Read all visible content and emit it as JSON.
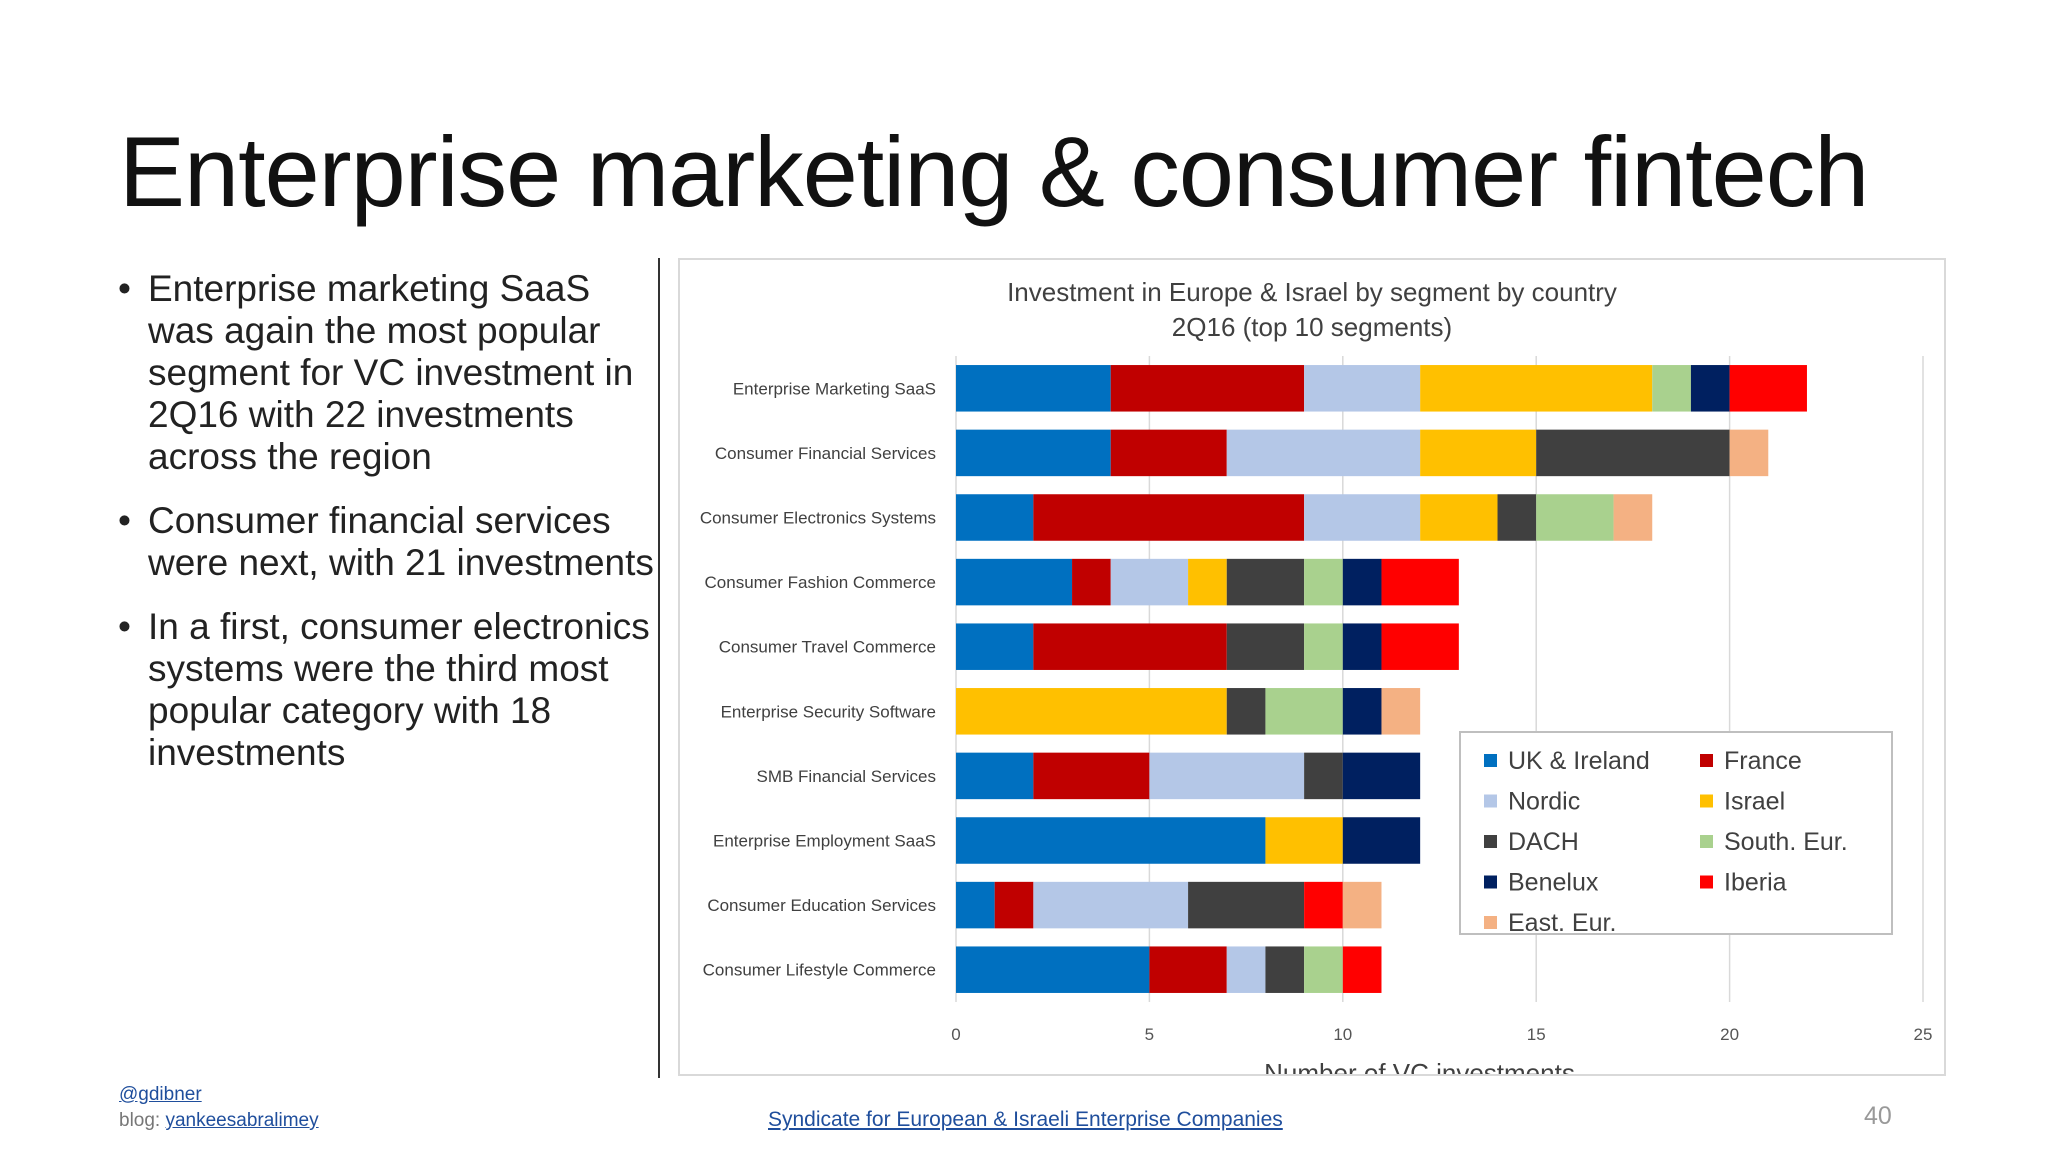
{
  "slide": {
    "title": "Enterprise marketing & consumer fintech",
    "bullets": [
      "Enterprise marketing SaaS was again the most popular segment for VC investment in 2Q16 with 22 investments across the region",
      "Consumer financial services were next, with 21 investments",
      "In a first, consumer electronics systems were the third most popular category with 18 investments"
    ],
    "page_number": "40"
  },
  "footer": {
    "handle": "@gdibner",
    "blog_label": "blog:",
    "blog_link": "yankeesabralimey",
    "center_link": "Syndicate for European & Israeli Enterprise Companies"
  },
  "chart_data": {
    "type": "bar",
    "orientation": "horizontal",
    "stacked": true,
    "title": "Investment in Europe & Israel by segment by country",
    "subtitle": "2Q16 (top 10 segments)",
    "xlabel": "Number of VC investments",
    "ylabel": "",
    "xlim": [
      0,
      25
    ],
    "xticks": [
      0,
      5,
      10,
      15,
      20,
      25
    ],
    "grid": true,
    "legend_position": "bottom-right",
    "categories": [
      "Enterprise Marketing SaaS",
      "Consumer Financial Services",
      "Consumer Electronics Systems",
      "Consumer Fashion Commerce",
      "Consumer Travel Commerce",
      "Enterprise Security Software",
      "SMB Financial Services",
      "Enterprise Employment SaaS",
      "Consumer Education Services",
      "Consumer Lifestyle Commerce"
    ],
    "series": [
      {
        "name": "UK & Ireland",
        "color": "#0070C0",
        "values": [
          4,
          4,
          2,
          3,
          2,
          0,
          2,
          8,
          1,
          5
        ]
      },
      {
        "name": "France",
        "color": "#C00000",
        "values": [
          5,
          3,
          7,
          1,
          5,
          0,
          3,
          0,
          1,
          2
        ]
      },
      {
        "name": "Nordic",
        "color": "#B4C7E7",
        "values": [
          3,
          5,
          3,
          2,
          0,
          0,
          4,
          0,
          4,
          1
        ]
      },
      {
        "name": "Israel",
        "color": "#FFC000",
        "values": [
          6,
          3,
          2,
          1,
          0,
          7,
          0,
          2,
          0,
          0
        ]
      },
      {
        "name": "DACH",
        "color": "#404040",
        "values": [
          0,
          5,
          1,
          2,
          2,
          1,
          1,
          0,
          3,
          1
        ]
      },
      {
        "name": "South. Eur.",
        "color": "#A9D18E",
        "values": [
          1,
          0,
          2,
          1,
          1,
          2,
          0,
          0,
          0,
          1
        ]
      },
      {
        "name": "Benelux",
        "color": "#002060",
        "values": [
          1,
          0,
          0,
          1,
          1,
          1,
          2,
          2,
          0,
          0
        ]
      },
      {
        "name": "Iberia",
        "color": "#FF0000",
        "values": [
          2,
          0,
          0,
          2,
          2,
          0,
          0,
          0,
          1,
          1
        ]
      },
      {
        "name": "East. Eur.",
        "color": "#F4B183",
        "values": [
          0,
          1,
          1,
          0,
          0,
          1,
          0,
          0,
          1,
          0
        ]
      }
    ],
    "legend_order": [
      "UK & Ireland",
      "France",
      "Nordic",
      "Israel",
      "DACH",
      "South. Eur.",
      "Benelux",
      "Iberia",
      "East. Eur."
    ]
  }
}
